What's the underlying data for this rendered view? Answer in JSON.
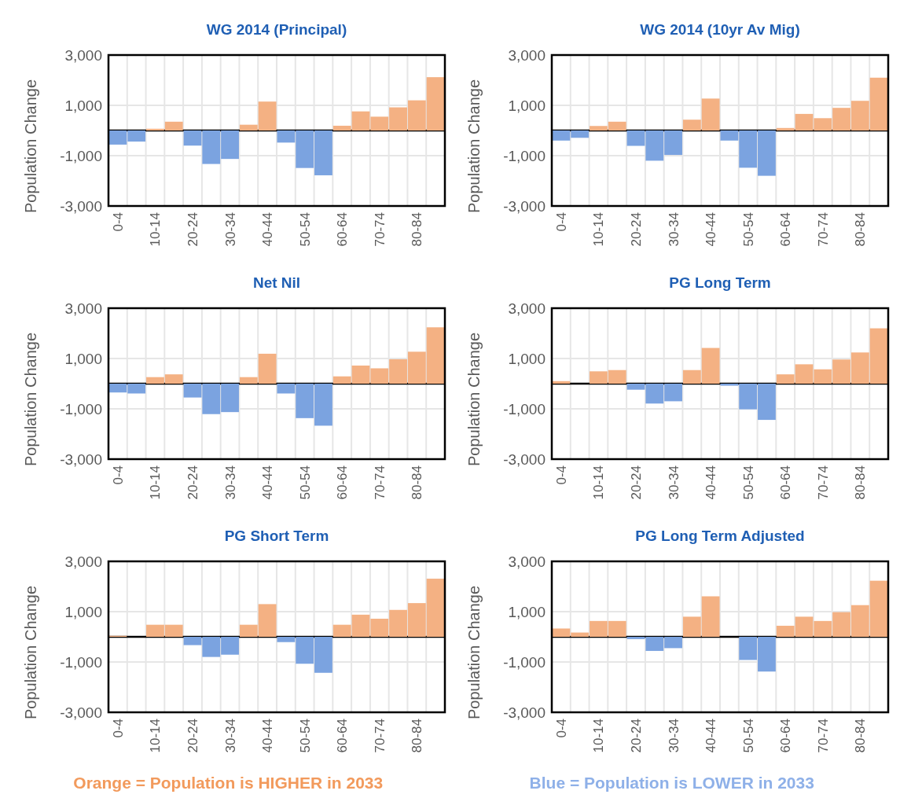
{
  "chart_data": [
    {
      "type": "bar",
      "title": "WG 2014 (Principal)",
      "ylabel": "Population Change",
      "categories": [
        "0-4",
        null,
        "10-14",
        null,
        "20-24",
        null,
        "30-34",
        null,
        "40-44",
        null,
        "50-54",
        null,
        "60-64",
        null,
        "70-74",
        null,
        "80-84",
        null
      ],
      "values": [
        -560,
        -440,
        70,
        350,
        -600,
        -1330,
        -1130,
        230,
        1150,
        -480,
        -1490,
        -1780,
        190,
        760,
        550,
        920,
        1200,
        2120
      ],
      "colors": [
        "#7ba3e0",
        "#7ba3e0",
        "#f4b183",
        "#f4b183",
        "#7ba3e0",
        "#7ba3e0",
        "#7ba3e0",
        "#f4b183",
        "#f4b183",
        "#7ba3e0",
        "#7ba3e0",
        "#7ba3e0",
        "#f4b183",
        "#f4b183",
        "#f4b183",
        "#f4b183",
        "#f4b183",
        "#f4b183"
      ],
      "ylim": [
        -3000,
        3000
      ],
      "yticks": [
        {
          "value": -3000,
          "label": "-3,000"
        },
        {
          "value": -1000,
          "label": "-1,000"
        },
        {
          "value": 1000,
          "label": "1,000"
        },
        {
          "value": 3000,
          "label": "3,000"
        }
      ],
      "grid": true
    },
    {
      "type": "bar",
      "title": "WG 2014 (10yr Av Mig)",
      "ylabel": "Population Change",
      "categories": [
        "0-4",
        null,
        "10-14",
        null,
        "20-24",
        null,
        "30-34",
        null,
        "40-44",
        null,
        "50-54",
        null,
        "60-64",
        null,
        "70-74",
        null,
        "80-84",
        null
      ],
      "values": [
        -400,
        -290,
        180,
        350,
        -610,
        -1200,
        -970,
        430,
        1270,
        -400,
        -1480,
        -1800,
        100,
        660,
        490,
        900,
        1180,
        2100
      ],
      "colors": [
        "#7ba3e0",
        "#7ba3e0",
        "#f4b183",
        "#f4b183",
        "#7ba3e0",
        "#7ba3e0",
        "#7ba3e0",
        "#f4b183",
        "#f4b183",
        "#7ba3e0",
        "#7ba3e0",
        "#7ba3e0",
        "#f4b183",
        "#f4b183",
        "#f4b183",
        "#f4b183",
        "#f4b183",
        "#f4b183"
      ],
      "ylim": [
        -3000,
        3000
      ],
      "yticks": [
        {
          "value": -3000,
          "label": "-3,000"
        },
        {
          "value": -1000,
          "label": "-1,000"
        },
        {
          "value": 1000,
          "label": "1,000"
        },
        {
          "value": 3000,
          "label": "3,000"
        }
      ],
      "grid": true
    },
    {
      "type": "bar",
      "title": "Net Nil",
      "ylabel": "Population Change",
      "categories": [
        "0-4",
        null,
        "10-14",
        null,
        "20-24",
        null,
        "30-34",
        null,
        "40-44",
        null,
        "50-54",
        null,
        "60-64",
        null,
        "70-74",
        null,
        "80-84",
        null
      ],
      "values": [
        -350,
        -390,
        260,
        370,
        -550,
        -1210,
        -1130,
        260,
        1190,
        -390,
        -1370,
        -1670,
        290,
        720,
        610,
        970,
        1270,
        2240
      ],
      "colors": [
        "#7ba3e0",
        "#7ba3e0",
        "#f4b183",
        "#f4b183",
        "#7ba3e0",
        "#7ba3e0",
        "#7ba3e0",
        "#f4b183",
        "#f4b183",
        "#7ba3e0",
        "#7ba3e0",
        "#7ba3e0",
        "#f4b183",
        "#f4b183",
        "#f4b183",
        "#f4b183",
        "#f4b183",
        "#f4b183"
      ],
      "ylim": [
        -3000,
        3000
      ],
      "yticks": [
        {
          "value": -3000,
          "label": "-3,000"
        },
        {
          "value": -1000,
          "label": "-1,000"
        },
        {
          "value": 1000,
          "label": "1,000"
        },
        {
          "value": 3000,
          "label": "3,000"
        }
      ],
      "grid": true
    },
    {
      "type": "bar",
      "title": "PG Long Term",
      "ylabel": "Population Change",
      "categories": [
        "0-4",
        null,
        "10-14",
        null,
        "20-24",
        null,
        "30-34",
        null,
        "40-44",
        null,
        "50-54",
        null,
        "60-64",
        null,
        "70-74",
        null,
        "80-84",
        null
      ],
      "values": [
        100,
        0,
        490,
        540,
        -240,
        -790,
        -700,
        540,
        1420,
        -80,
        -1020,
        -1440,
        370,
        770,
        570,
        960,
        1240,
        2200
      ],
      "colors": [
        "#f4b183",
        "#f4b183",
        "#f4b183",
        "#f4b183",
        "#7ba3e0",
        "#7ba3e0",
        "#7ba3e0",
        "#f4b183",
        "#f4b183",
        "#7ba3e0",
        "#7ba3e0",
        "#7ba3e0",
        "#f4b183",
        "#f4b183",
        "#f4b183",
        "#f4b183",
        "#f4b183",
        "#f4b183"
      ],
      "ylim": [
        -3000,
        3000
      ],
      "yticks": [
        {
          "value": -3000,
          "label": "-3,000"
        },
        {
          "value": -1000,
          "label": "-1,000"
        },
        {
          "value": 1000,
          "label": "1,000"
        },
        {
          "value": 3000,
          "label": "3,000"
        }
      ],
      "grid": true
    },
    {
      "type": "bar",
      "title": "PG Short Term",
      "ylabel": "Population Change",
      "categories": [
        "0-4",
        null,
        "10-14",
        null,
        "20-24",
        null,
        "30-34",
        null,
        "40-44",
        null,
        "50-54",
        null,
        "60-64",
        null,
        "70-74",
        null,
        "80-84",
        null
      ],
      "values": [
        40,
        0,
        480,
        480,
        -330,
        -800,
        -710,
        480,
        1300,
        -210,
        -1070,
        -1430,
        480,
        880,
        720,
        1070,
        1340,
        2310
      ],
      "colors": [
        "#f4b183",
        "#f4b183",
        "#f4b183",
        "#f4b183",
        "#7ba3e0",
        "#7ba3e0",
        "#7ba3e0",
        "#f4b183",
        "#f4b183",
        "#7ba3e0",
        "#7ba3e0",
        "#7ba3e0",
        "#f4b183",
        "#f4b183",
        "#f4b183",
        "#f4b183",
        "#f4b183",
        "#f4b183"
      ],
      "ylim": [
        -3000,
        3000
      ],
      "yticks": [
        {
          "value": -3000,
          "label": "-3,000"
        },
        {
          "value": -1000,
          "label": "-1,000"
        },
        {
          "value": 1000,
          "label": "1,000"
        },
        {
          "value": 3000,
          "label": "3,000"
        }
      ],
      "grid": true
    },
    {
      "type": "bar",
      "title": "PG Long Term Adjusted",
      "ylabel": "Population Change",
      "categories": [
        "0-4",
        null,
        "10-14",
        null,
        "20-24",
        null,
        "30-34",
        null,
        "40-44",
        null,
        "50-54",
        null,
        "60-64",
        null,
        "70-74",
        null,
        "80-84",
        null
      ],
      "values": [
        330,
        170,
        630,
        630,
        -90,
        -560,
        -450,
        800,
        1610,
        0,
        -920,
        -1380,
        440,
        800,
        630,
        980,
        1260,
        2230
      ],
      "colors": [
        "#f4b183",
        "#f4b183",
        "#f4b183",
        "#f4b183",
        "#7ba3e0",
        "#7ba3e0",
        "#7ba3e0",
        "#f4b183",
        "#f4b183",
        "#7ba3e0",
        "#7ba3e0",
        "#7ba3e0",
        "#f4b183",
        "#f4b183",
        "#f4b183",
        "#f4b183",
        "#f4b183",
        "#f4b183"
      ],
      "ylim": [
        -3000,
        3000
      ],
      "yticks": [
        {
          "value": -3000,
          "label": "-3,000"
        },
        {
          "value": -1000,
          "label": "-1,000"
        },
        {
          "value": 1000,
          "label": "1,000"
        },
        {
          "value": 3000,
          "label": "3,000"
        }
      ],
      "grid": true,
      "annotations": [
        "Orange = Population is HIGHER in 2033",
        "Blue = Population is LOWER in 2033"
      ]
    }
  ]
}
